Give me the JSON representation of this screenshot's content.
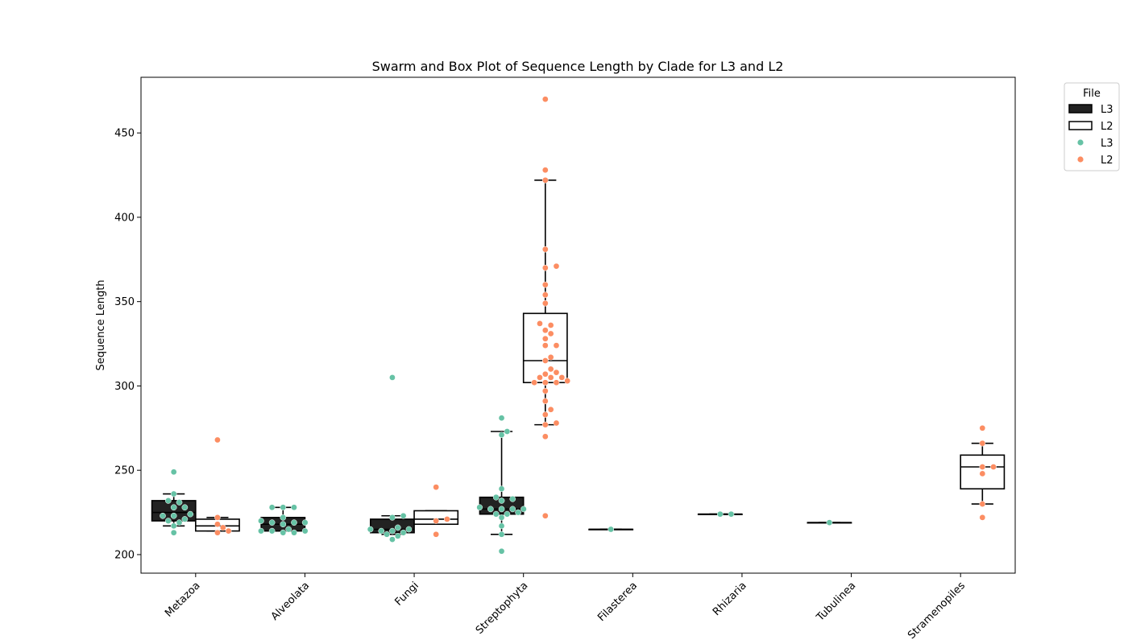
{
  "chart_data": {
    "type": "box",
    "title": "Swarm and Box Plot of Sequence Length by Clade for L3 and L2",
    "xlabel": "",
    "ylabel": "Sequence Length",
    "ylim": [
      189,
      483
    ],
    "yticks": [
      200,
      250,
      300,
      350,
      400,
      450
    ],
    "categories": [
      "Metazoa",
      "Alveolata",
      "Fungi",
      "Streptophyta",
      "Filasterea",
      "Rhizaria",
      "Tubulinea",
      "Stramenopiles"
    ],
    "grid": false,
    "legend": {
      "title": "File",
      "position": "upper right, outside plot",
      "entries": [
        {
          "label": "L3",
          "kind": "box",
          "fill": "#222222"
        },
        {
          "label": "L2",
          "kind": "box",
          "fill": "#ffffff"
        },
        {
          "label": "L3",
          "kind": "point",
          "color": "#66c2a5"
        },
        {
          "label": "L2",
          "kind": "point",
          "color": "#fc8d62"
        }
      ]
    },
    "series": [
      {
        "name": "L3",
        "box_fill": "#222222",
        "point_color": "#66c2a5",
        "boxes": [
          {
            "category": "Metazoa",
            "whislo": 217,
            "q1": 220,
            "med": 225,
            "q3": 232,
            "whishi": 236
          },
          {
            "category": "Alveolata",
            "whislo": 214,
            "q1": 214,
            "med": 218,
            "q3": 222,
            "whishi": 228
          },
          {
            "category": "Fungi",
            "whislo": 212,
            "q1": 213,
            "med": 215,
            "q3": 221,
            "whishi": 223
          },
          {
            "category": "Streptophyta",
            "whislo": 212,
            "q1": 224,
            "med": 227,
            "q3": 234,
            "whishi": 273
          },
          {
            "category": "Filasterea",
            "whislo": 215,
            "q1": 215,
            "med": 215,
            "q3": 215,
            "whishi": 215
          },
          {
            "category": "Rhizaria",
            "whislo": 224,
            "q1": 224,
            "med": 224,
            "q3": 224,
            "whishi": 224
          },
          {
            "category": "Tubulinea",
            "whislo": 219,
            "q1": 219,
            "med": 219,
            "q3": 219,
            "whishi": 219
          }
        ],
        "points": {
          "Metazoa": [
            249,
            236,
            232,
            231,
            228,
            228,
            224,
            223,
            223,
            221,
            220,
            219,
            217,
            213
          ],
          "Alveolata": [
            228,
            228,
            228,
            222,
            220,
            219,
            219,
            219,
            218,
            215,
            214,
            214,
            214,
            213,
            213
          ],
          "Fungi": [
            305,
            223,
            222,
            216,
            215,
            215,
            214,
            214,
            213,
            212,
            211,
            209
          ],
          "Streptophyta": [
            281,
            273,
            271,
            239,
            234,
            233,
            232,
            228,
            227,
            227,
            227,
            227,
            225,
            224,
            224,
            222,
            217,
            212,
            202
          ],
          "Filasterea": [
            215
          ],
          "Rhizaria": [
            224,
            224
          ],
          "Tubulinea": [
            219
          ]
        }
      },
      {
        "name": "L2",
        "box_fill": "#ffffff",
        "point_color": "#fc8d62",
        "boxes": [
          {
            "category": "Metazoa",
            "whislo": 214,
            "q1": 214,
            "med": 217,
            "q3": 221,
            "whishi": 222
          },
          {
            "category": "Fungi",
            "whislo": 218,
            "q1": 218,
            "med": 221,
            "q3": 226,
            "whishi": 226
          },
          {
            "category": "Streptophyta",
            "whislo": 277,
            "q1": 302,
            "med": 315,
            "q3": 343,
            "whishi": 422
          },
          {
            "category": "Stramenopiles",
            "whislo": 230,
            "q1": 239,
            "med": 252,
            "q3": 259,
            "whishi": 266
          }
        ],
        "points": {
          "Metazoa": [
            268,
            222,
            218,
            216,
            214,
            213
          ],
          "Fungi": [
            240,
            221,
            220,
            212
          ],
          "Streptophyta": [
            470,
            428,
            422,
            381,
            371,
            370,
            360,
            354,
            349,
            337,
            336,
            333,
            331,
            328,
            324,
            324,
            317,
            315,
            310,
            308,
            307,
            305,
            305,
            305,
            303,
            302,
            302,
            302,
            297,
            291,
            286,
            283,
            278,
            277,
            270,
            223
          ],
          "Stramenopiles": [
            275,
            266,
            252,
            252,
            248,
            230,
            222
          ]
        }
      }
    ]
  }
}
